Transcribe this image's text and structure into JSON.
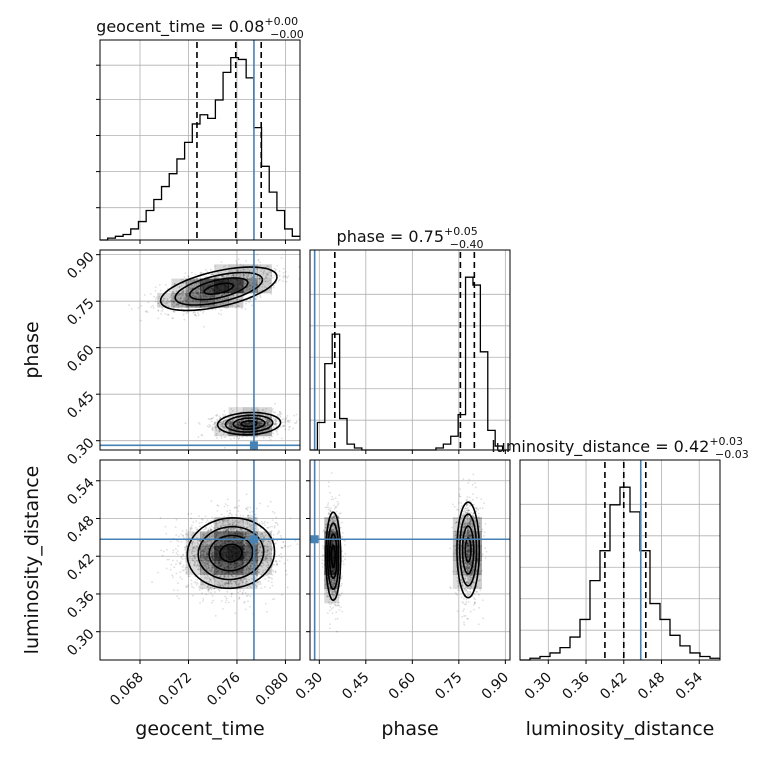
{
  "chart_data": {
    "type": "corner",
    "parameters": [
      "geocent_time",
      "phase",
      "luminosity_distance"
    ],
    "axis_labels": [
      "geocent_time",
      "phase",
      "luminosity_distance"
    ],
    "titles": [
      {
        "param": "geocent_time",
        "text": "geocent_time = 0.08",
        "plus": "+0.00",
        "minus": "−0.00"
      },
      {
        "param": "phase",
        "text": "phase = 0.75",
        "plus": "+0.05",
        "minus": "−0.40"
      },
      {
        "param": "luminosity_distance",
        "text": "luminosity_distance = 0.42",
        "plus": "+0.03",
        "minus": "−0.03"
      }
    ],
    "ranges": {
      "geocent_time": [
        0.0647,
        0.0812
      ],
      "phase": [
        0.27,
        0.915
      ],
      "luminosity_distance": [
        0.255,
        0.573
      ]
    },
    "ticks": {
      "geocent_time": {
        "values": [
          0.068,
          0.072,
          0.076,
          0.08
        ],
        "labels": [
          "0.068",
          "0.072",
          "0.076",
          "0.080"
        ]
      },
      "phase": {
        "values": [
          0.3,
          0.45,
          0.6,
          0.75,
          0.9
        ],
        "labels": [
          "0.30",
          "0.45",
          "0.60",
          "0.75",
          "0.90"
        ]
      },
      "luminosity_distance": {
        "values": [
          0.3,
          0.36,
          0.42,
          0.48,
          0.54
        ],
        "labels": [
          "0.30",
          "0.36",
          "0.42",
          "0.48",
          "0.54"
        ]
      }
    },
    "truths": {
      "geocent_time": 0.0774,
      "phase": 0.285,
      "luminosity_distance": 0.447
    },
    "quantiles": {
      "geocent_time": [
        0.0727,
        0.0759,
        0.078
      ],
      "phase": [
        0.35,
        0.755,
        0.8
      ],
      "luminosity_distance": [
        0.39,
        0.42,
        0.455
      ]
    },
    "histograms": {
      "geocent_time": {
        "edges": [
          0.0647,
          0.0812
        ],
        "counts": [
          0,
          1,
          2,
          3,
          6,
          10,
          16,
          22,
          29,
          36,
          44,
          53,
          63,
          68,
          66,
          76,
          91,
          99,
          98,
          88,
          61,
          40,
          26,
          16,
          6,
          2
        ]
      },
      "phase": {
        "edges": [
          0.27,
          0.915
        ],
        "counts": [
          0,
          14,
          44,
          59,
          16,
          3,
          1,
          0,
          0,
          0,
          0,
          0,
          0,
          0,
          0,
          0,
          0,
          1,
          3,
          7,
          18,
          88,
          84,
          50,
          10,
          2,
          0
        ]
      },
      "luminosity_distance": {
        "edges": [
          0.255,
          0.573
        ],
        "counts": [
          0,
          1,
          2,
          4,
          7,
          13,
          23,
          45,
          62,
          88,
          98,
          84,
          62,
          32,
          23,
          14,
          8,
          4,
          2,
          1
        ]
      }
    },
    "contour_modes": [
      {
        "x": "geocent_time",
        "y": "phase",
        "modes": [
          {
            "x": 0.0745,
            "y": 0.79,
            "sx": 0.0024,
            "sy": 0.035,
            "rho": 0.55
          },
          {
            "x": 0.077,
            "y": 0.355,
            "sx": 0.0013,
            "sy": 0.018,
            "rho": 0.1
          }
        ]
      },
      {
        "x": "geocent_time",
        "y": "luminosity_distance",
        "modes": [
          {
            "x": 0.0755,
            "y": 0.425,
            "sx": 0.0018,
            "sy": 0.028,
            "rho": 0.05
          }
        ]
      },
      {
        "x": "phase",
        "y": "luminosity_distance",
        "modes": [
          {
            "x": 0.345,
            "y": 0.42,
            "sx": 0.012,
            "sy": 0.035,
            "rho": 0.0
          },
          {
            "x": 0.78,
            "y": 0.43,
            "sx": 0.018,
            "sy": 0.038,
            "rho": 0.0
          }
        ]
      }
    ],
    "colors": {
      "truth": "#4682b4",
      "line": "#000000",
      "grid": "#b0b0b0",
      "density": "#000000"
    },
    "grid": true
  }
}
